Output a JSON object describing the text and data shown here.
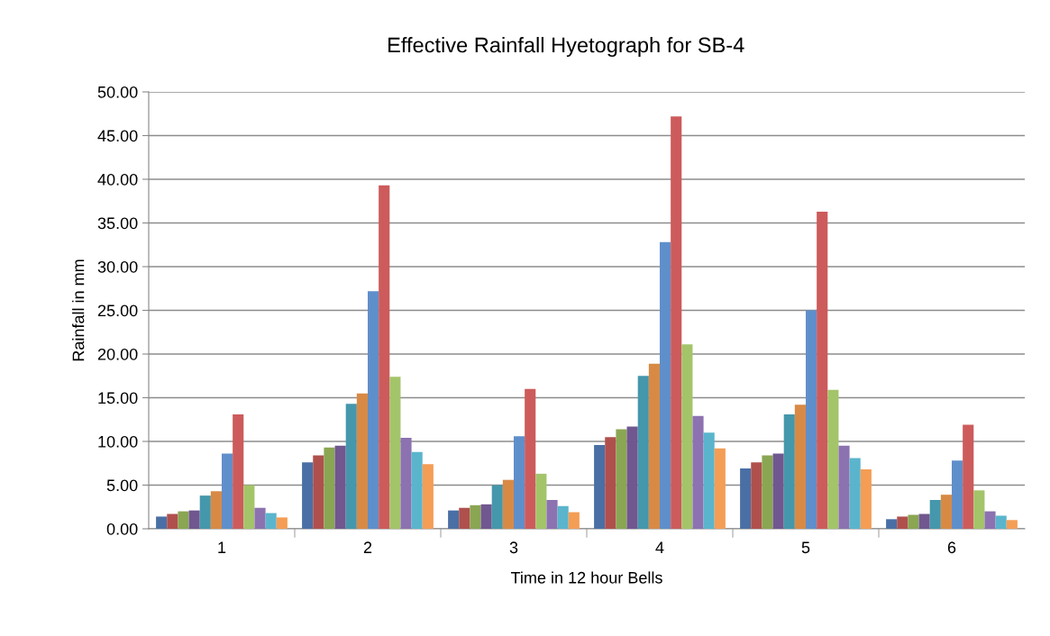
{
  "chart_data": {
    "type": "bar",
    "title": "Effective Rainfall Hyetograph for SB-4",
    "xlabel": "Time in 12 hour Bells",
    "ylabel": "Rainfall in mm",
    "categories": [
      "1",
      "2",
      "3",
      "4",
      "5",
      "6"
    ],
    "series": [
      {
        "color": "#4a6fa5",
        "values": [
          1.4,
          7.6,
          2.1,
          9.6,
          6.9,
          1.1
        ]
      },
      {
        "color": "#b0504d",
        "values": [
          1.7,
          8.4,
          2.4,
          10.5,
          7.6,
          1.4
        ]
      },
      {
        "color": "#8aa653",
        "values": [
          2.0,
          9.3,
          2.7,
          11.4,
          8.4,
          1.6
        ]
      },
      {
        "color": "#70578f",
        "values": [
          2.1,
          9.5,
          2.8,
          11.7,
          8.6,
          1.7
        ]
      },
      {
        "color": "#4597ab",
        "values": [
          3.8,
          14.3,
          5.0,
          17.5,
          13.1,
          3.3
        ]
      },
      {
        "color": "#d88a45",
        "values": [
          4.3,
          15.5,
          5.6,
          18.9,
          14.2,
          3.9
        ]
      },
      {
        "color": "#5f8fcb",
        "values": [
          8.6,
          27.2,
          10.6,
          32.8,
          25.0,
          7.8
        ]
      },
      {
        "color": "#cd5b5b",
        "values": [
          13.1,
          39.3,
          16.0,
          47.2,
          36.3,
          11.9
        ]
      },
      {
        "color": "#a4c46a",
        "values": [
          5.0,
          17.4,
          6.3,
          21.1,
          15.9,
          4.4
        ]
      },
      {
        "color": "#8c72b0",
        "values": [
          2.4,
          10.4,
          3.3,
          12.9,
          9.5,
          2.0
        ]
      },
      {
        "color": "#5ab5cc",
        "values": [
          1.8,
          8.8,
          2.6,
          11.0,
          8.1,
          1.5
        ]
      },
      {
        "color": "#f49d55",
        "values": [
          1.3,
          7.4,
          1.9,
          9.2,
          6.8,
          1.0
        ]
      }
    ],
    "ylim": [
      0,
      50
    ],
    "yticks": [
      {
        "value": 0,
        "label": "0.00"
      },
      {
        "value": 5,
        "label": "5.00"
      },
      {
        "value": 10,
        "label": "10.00"
      },
      {
        "value": 15,
        "label": "15.00"
      },
      {
        "value": 20,
        "label": "20.00"
      },
      {
        "value": 25,
        "label": "25.00"
      },
      {
        "value": 30,
        "label": "30.00"
      },
      {
        "value": 35,
        "label": "35.00"
      },
      {
        "value": 40,
        "label": "40.00"
      },
      {
        "value": 45,
        "label": "45.00"
      },
      {
        "value": 50,
        "label": "50.00"
      }
    ],
    "grid": "y"
  }
}
